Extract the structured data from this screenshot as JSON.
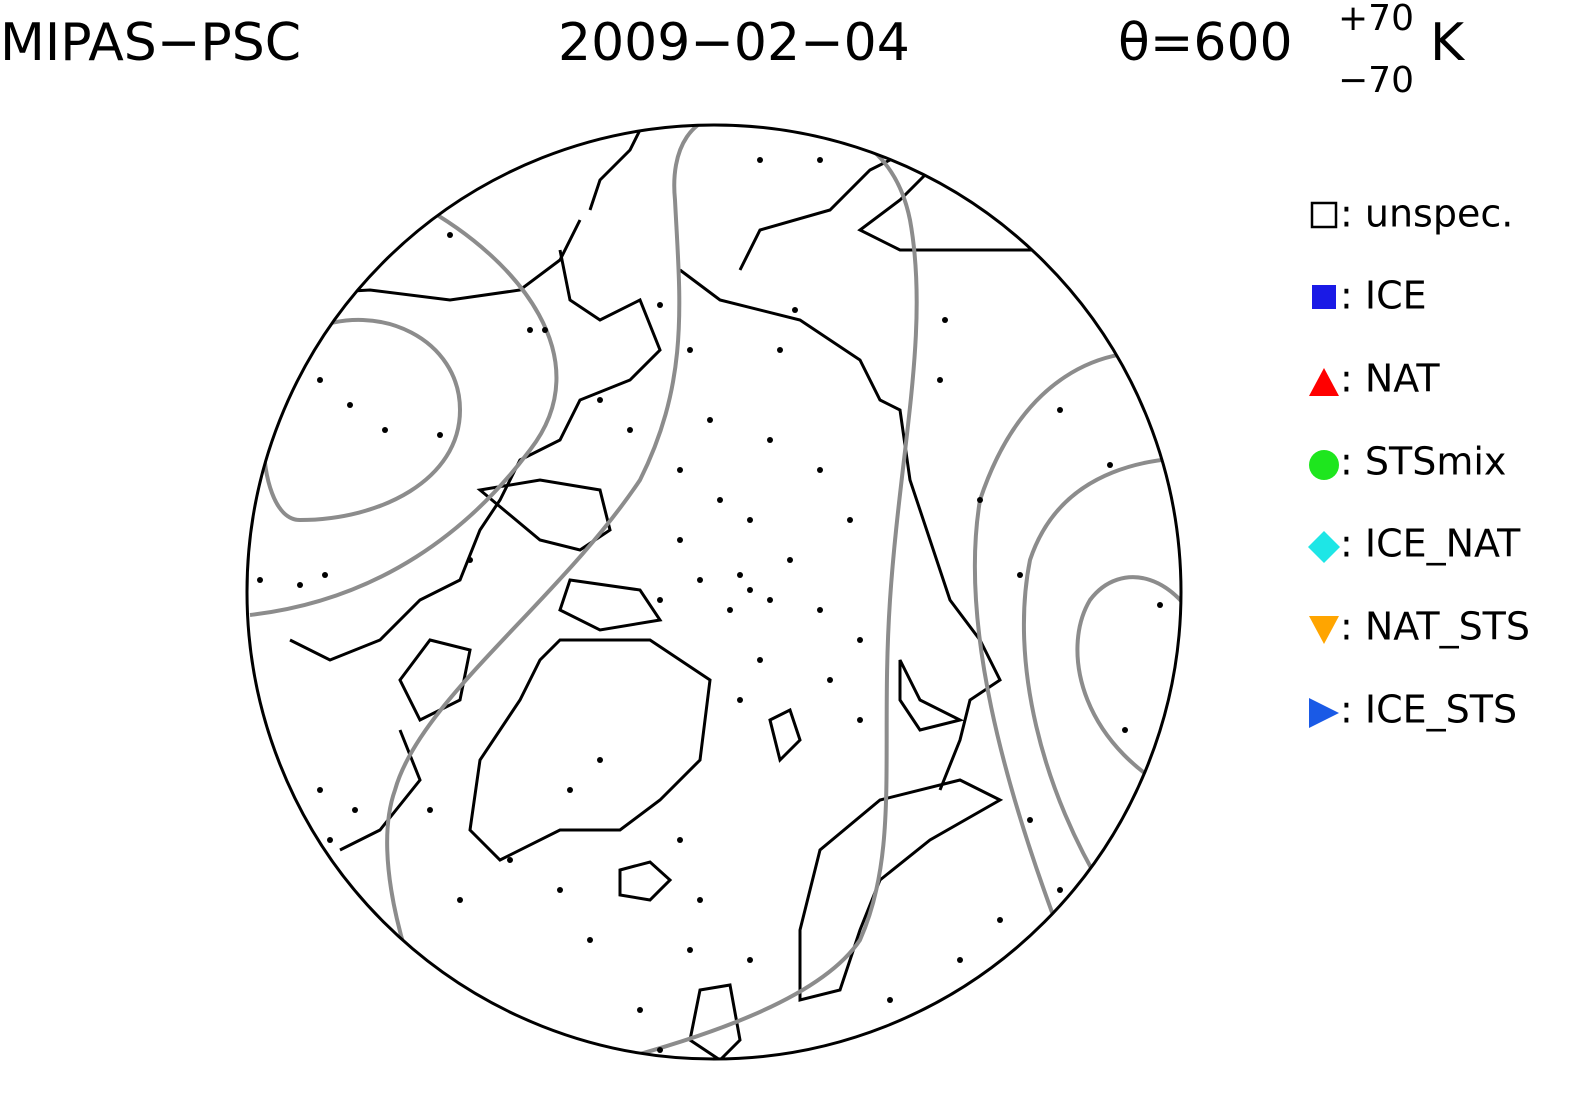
{
  "header": {
    "instrument": "MIPAS−PSC",
    "date": "2009−02−04",
    "level": "θ=600",
    "level_plus": "+70",
    "level_minus": "−70",
    "unit": "K"
  },
  "legend": [
    ": unspec.",
    ": ICE",
    ": NAT",
    ": STSmix",
    ": ICE_NAT",
    ": NAT_STS",
    ": ICE_STS"
  ]
}
